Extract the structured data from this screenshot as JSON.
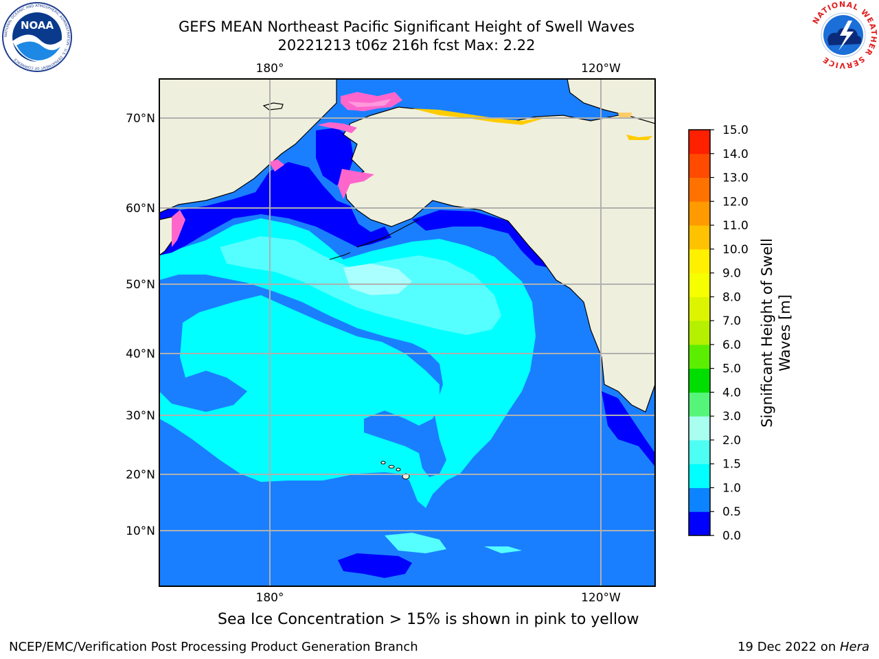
{
  "header": {
    "title_line1": "GEFS MEAN Northeast Pacific Significant Height of Swell Waves",
    "title_line2": "20221213 t06z 216h fcst   Max: 2.22"
  },
  "logos": {
    "noaa": {
      "text": "NOAA",
      "ring_text": "NATIONAL OCEANIC AND ATMOSPHERIC ADMINISTRATION · U.S. DEPARTMENT OF COMMERCE"
    },
    "nws": {
      "ring_text": "NATIONAL WEATHER SERVICE"
    }
  },
  "map": {
    "top_lon_labels": [
      "180°",
      "120°W"
    ],
    "bottom_lon_labels": [
      "180°",
      "120°W"
    ],
    "lat_labels": [
      "70°N",
      "60°N",
      "50°N",
      "40°N",
      "30°N",
      "20°N",
      "10°N"
    ],
    "colors": {
      "land": "#efefdd",
      "ocean_low": "#1a7fff",
      "deep_blue": "#0000ff",
      "cyan": "#00ffff",
      "light_cyan": "#55ffff",
      "pale_cyan": "#aaffff",
      "ice_pink": "#ff66cc",
      "ice_yellow": "#ffcc00",
      "grid": "#b0b0b0"
    }
  },
  "colorbar": {
    "ticks": [
      "15.0",
      "14.0",
      "13.0",
      "12.0",
      "11.0",
      "10.0",
      "9.0",
      "8.0",
      "7.0",
      "6.0",
      "5.0",
      "4.0",
      "3.0",
      "2.0",
      "1.5",
      "1.0",
      "0.5",
      "0.0"
    ],
    "colors": [
      "#0000ff",
      "#0d84ff",
      "#00ffff",
      "#4dfff2",
      "#a8fff0",
      "#55f57a",
      "#00dd00",
      "#5cee00",
      "#b4f000",
      "#dcf400",
      "#f5ff00",
      "#fff000",
      "#ffc200",
      "#ff9a00",
      "#ff7200",
      "#ff4a00",
      "#ff2000"
    ],
    "label_line1": "Significant Height of Swell",
    "label_line2": "Waves [m]"
  },
  "note": "Sea Ice Concentration > 15% is shown in pink to yellow",
  "footer": {
    "left": "NCEP/EMC/Verification Post Processing Product Generation Branch",
    "right_prefix": "19 Dec 2022 on ",
    "right_italic": "Hera"
  }
}
